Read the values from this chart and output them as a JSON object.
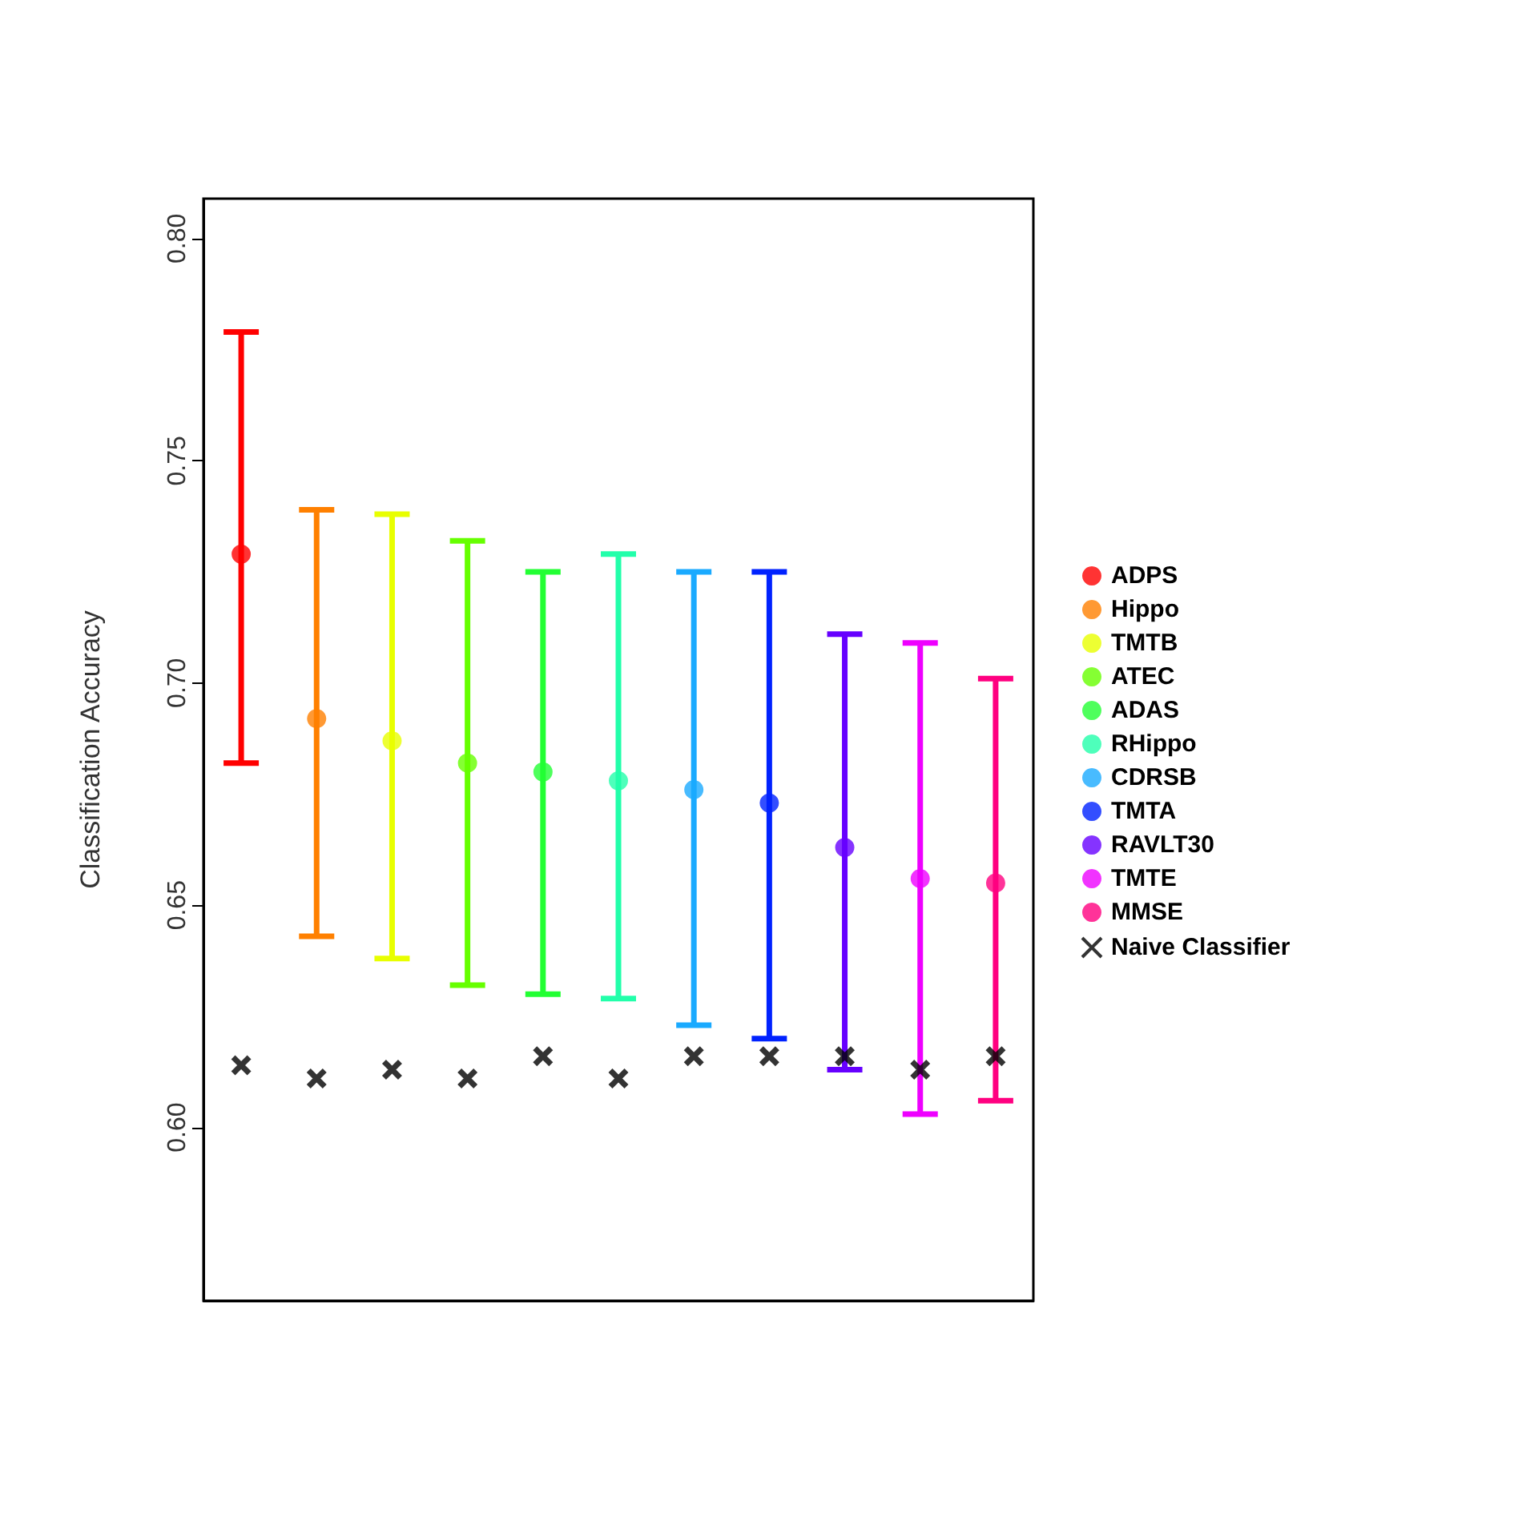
{
  "chart_data": {
    "type": "scatter",
    "ylabel": "Classification Accuracy",
    "categories": [
      null,
      null,
      null,
      null,
      null,
      null,
      null,
      null,
      null,
      null,
      null
    ],
    "ylim": [
      0.561,
      0.809
    ],
    "yticks": [
      {
        "value": 0.6,
        "label": "0.60"
      },
      {
        "value": 0.65,
        "label": "0.65"
      },
      {
        "value": 0.7,
        "label": "0.70"
      },
      {
        "value": 0.75,
        "label": "0.75"
      },
      {
        "value": 0.8,
        "label": "0.80"
      }
    ],
    "grid": false,
    "legend": "right",
    "tick_labels": "y",
    "marker": "circle",
    "series": [
      {
        "name": "ADPS",
        "color": "#ff0000",
        "values": [
          0.729,
          null,
          null,
          null,
          null,
          null,
          null,
          null,
          null,
          null,
          null
        ],
        "errors": [
          [
            0.682,
            0.779
          ],
          null,
          null,
          null,
          null,
          null,
          null,
          null,
          null,
          null,
          null
        ]
      },
      {
        "name": "Hippo",
        "color": "#ff8000",
        "values": [
          null,
          0.692,
          null,
          null,
          null,
          null,
          null,
          null,
          null,
          null,
          null
        ],
        "errors": [
          null,
          [
            0.643,
            0.739
          ],
          null,
          null,
          null,
          null,
          null,
          null,
          null,
          null,
          null
        ]
      },
      {
        "name": "TMTB",
        "color": "#e8ff00",
        "values": [
          null,
          null,
          0.687,
          null,
          null,
          null,
          null,
          null,
          null,
          null,
          null
        ],
        "errors": [
          null,
          null,
          [
            0.638,
            0.738
          ],
          null,
          null,
          null,
          null,
          null,
          null,
          null,
          null
        ]
      },
      {
        "name": "ATEC",
        "color": "#66ff00",
        "values": [
          null,
          null,
          null,
          0.682,
          null,
          null,
          null,
          null,
          null,
          null,
          null
        ],
        "errors": [
          null,
          null,
          null,
          [
            0.632,
            0.732
          ],
          null,
          null,
          null,
          null,
          null,
          null,
          null
        ]
      },
      {
        "name": "ADAS",
        "color": "#22ff33",
        "values": [
          null,
          null,
          null,
          null,
          0.68,
          null,
          null,
          null,
          null,
          null,
          null
        ],
        "errors": [
          null,
          null,
          null,
          null,
          [
            0.63,
            0.725
          ],
          null,
          null,
          null,
          null,
          null,
          null
        ]
      },
      {
        "name": "RHippo",
        "color": "#22ffaa",
        "values": [
          null,
          null,
          null,
          null,
          null,
          0.678,
          null,
          null,
          null,
          null,
          null
        ],
        "errors": [
          null,
          null,
          null,
          null,
          null,
          [
            0.629,
            0.729
          ],
          null,
          null,
          null,
          null,
          null
        ]
      },
      {
        "name": "CDRSB",
        "color": "#1aaaff",
        "values": [
          null,
          null,
          null,
          null,
          null,
          null,
          0.676,
          null,
          null,
          null,
          null
        ],
        "errors": [
          null,
          null,
          null,
          null,
          null,
          null,
          [
            0.623,
            0.725
          ],
          null,
          null,
          null,
          null
        ]
      },
      {
        "name": "TMTA",
        "color": "#0022ff",
        "values": [
          null,
          null,
          null,
          null,
          null,
          null,
          null,
          0.673,
          null,
          null,
          null
        ],
        "errors": [
          null,
          null,
          null,
          null,
          null,
          null,
          null,
          [
            0.62,
            0.725
          ],
          null,
          null,
          null
        ]
      },
      {
        "name": "RAVLT30",
        "color": "#6600ff",
        "values": [
          null,
          null,
          null,
          null,
          null,
          null,
          null,
          null,
          0.663,
          null,
          null
        ],
        "errors": [
          null,
          null,
          null,
          null,
          null,
          null,
          null,
          null,
          [
            0.613,
            0.711
          ],
          null,
          null
        ]
      },
      {
        "name": "TMTE",
        "color": "#ee00ff",
        "values": [
          null,
          null,
          null,
          null,
          null,
          null,
          null,
          null,
          null,
          0.656,
          null
        ],
        "errors": [
          null,
          null,
          null,
          null,
          null,
          null,
          null,
          null,
          null,
          [
            0.603,
            0.709
          ],
          null
        ]
      },
      {
        "name": "MMSE",
        "color": "#ff0080",
        "values": [
          null,
          null,
          null,
          null,
          null,
          null,
          null,
          null,
          null,
          null,
          0.655
        ],
        "errors": [
          null,
          null,
          null,
          null,
          null,
          null,
          null,
          null,
          null,
          null,
          [
            0.606,
            0.701
          ]
        ]
      },
      {
        "name": "Naive Classifier",
        "color": "#000000",
        "marker": "cross",
        "values": [
          0.614,
          0.611,
          0.613,
          0.611,
          0.616,
          0.611,
          0.616,
          0.616,
          0.616,
          0.613,
          0.616
        ]
      }
    ]
  }
}
